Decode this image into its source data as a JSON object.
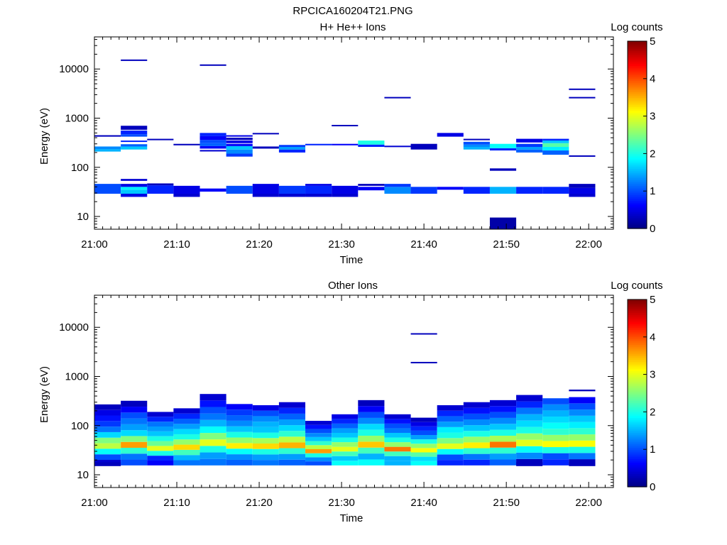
{
  "figure_title": "RPCICA160204T21.PNG",
  "chart_data": [
    {
      "type": "heatmap",
      "title": "H+ He++ Ions",
      "xlabel": "Time",
      "ylabel": "Energy (eV)",
      "xticks": [
        "21:00",
        "21:10",
        "21:20",
        "21:30",
        "21:40",
        "21:50",
        "22:00"
      ],
      "xlim_minutes": [
        0,
        63
      ],
      "yticks": [
        "10",
        "100",
        "1000",
        "10000"
      ],
      "yscale": "log",
      "ylim": [
        5.5,
        45000
      ],
      "colorbar": {
        "label": "Log counts",
        "ticks": [
          "0",
          "1",
          "2",
          "3",
          "4",
          "5"
        ],
        "range": [
          0,
          5
        ]
      },
      "cells": [
        [
          0,
          3.2,
          29,
          46,
          1.0
        ],
        [
          0,
          3.2,
          209,
          235,
          1.5
        ],
        [
          0,
          3.2,
          235,
          265,
          1.3
        ],
        [
          0,
          3.2,
          420,
          450,
          0.3
        ],
        [
          3.2,
          6.4,
          25,
          29,
          0.5
        ],
        [
          3.2,
          6.4,
          29,
          35,
          1.6
        ],
        [
          3.2,
          6.4,
          35,
          40,
          1.8
        ],
        [
          3.2,
          6.4,
          40,
          46,
          0.5
        ],
        [
          3.2,
          6.4,
          53,
          58,
          0.4
        ],
        [
          3.2,
          6.4,
          230,
          265,
          1.6
        ],
        [
          3.2,
          6.4,
          265,
          295,
          1.1
        ],
        [
          3.2,
          6.4,
          330,
          350,
          0.8
        ],
        [
          3.2,
          6.4,
          420,
          470,
          1.0
        ],
        [
          3.2,
          6.4,
          470,
          560,
          0.8
        ],
        [
          3.2,
          6.4,
          580,
          700,
          0.3
        ],
        [
          3.2,
          6.4,
          14800,
          15600,
          0.3
        ],
        [
          6.4,
          9.6,
          29,
          43,
          0.8
        ],
        [
          6.4,
          9.6,
          43,
          47,
          0.3
        ],
        [
          6.4,
          9.6,
          360,
          380,
          0.3
        ],
        [
          9.6,
          12.8,
          25,
          29,
          0.4
        ],
        [
          9.6,
          12.8,
          29,
          42,
          0.5
        ],
        [
          9.6,
          12.8,
          280,
          300,
          0.3
        ],
        [
          12.8,
          16,
          32,
          37,
          0.6
        ],
        [
          12.8,
          16,
          210,
          225,
          0.4
        ],
        [
          12.8,
          16,
          240,
          270,
          0.6
        ],
        [
          12.8,
          16,
          270,
          310,
          1.1
        ],
        [
          12.8,
          16,
          310,
          360,
          1.0
        ],
        [
          12.8,
          16,
          360,
          430,
          0.6
        ],
        [
          12.8,
          16,
          430,
          500,
          0.8
        ],
        [
          12.8,
          16,
          11800,
          12400,
          0.3
        ],
        [
          16,
          19.2,
          29,
          42,
          1.0
        ],
        [
          16,
          19.2,
          165,
          190,
          0.9
        ],
        [
          16,
          19.2,
          190,
          230,
          1.3
        ],
        [
          16,
          19.2,
          230,
          270,
          1.6
        ],
        [
          16,
          19.2,
          270,
          300,
          0.6
        ],
        [
          16,
          19.2,
          310,
          350,
          0.5
        ],
        [
          16,
          19.2,
          360,
          400,
          0.3
        ],
        [
          16,
          19.2,
          420,
          450,
          0.5
        ],
        [
          19.2,
          22.4,
          25,
          29,
          0.4
        ],
        [
          19.2,
          22.4,
          29,
          46,
          0.5
        ],
        [
          19.2,
          22.4,
          240,
          265,
          0.3
        ],
        [
          19.2,
          22.4,
          470,
          500,
          0.3
        ],
        [
          22.4,
          25.6,
          25,
          29,
          0.4
        ],
        [
          22.4,
          25.6,
          29,
          42,
          0.9
        ],
        [
          22.4,
          25.6,
          200,
          230,
          0.8
        ],
        [
          22.4,
          25.6,
          230,
          260,
          1.4
        ],
        [
          22.4,
          25.6,
          260,
          285,
          0.9
        ],
        [
          25.6,
          28.8,
          25,
          29,
          0.4
        ],
        [
          25.6,
          28.8,
          29,
          42,
          0.8
        ],
        [
          25.6,
          28.8,
          42,
          46,
          0.5
        ],
        [
          25.6,
          28.8,
          280,
          300,
          0.8
        ],
        [
          28.8,
          32,
          25,
          29,
          0.4
        ],
        [
          28.8,
          32,
          29,
          42,
          0.5
        ],
        [
          28.8,
          32,
          280,
          300,
          0.6
        ],
        [
          28.8,
          32,
          700,
          730,
          0.3
        ],
        [
          32,
          35.2,
          34,
          40,
          0.6
        ],
        [
          32,
          35.2,
          42,
          46,
          0.3
        ],
        [
          32,
          35.2,
          260,
          290,
          0.8
        ],
        [
          32,
          35.2,
          290,
          350,
          2.0
        ],
        [
          35.2,
          38.4,
          29,
          40,
          1.3
        ],
        [
          35.2,
          38.4,
          40,
          46,
          0.9
        ],
        [
          35.2,
          38.4,
          260,
          275,
          0.4
        ],
        [
          35.2,
          38.4,
          2550,
          2700,
          0.3
        ],
        [
          38.4,
          41.6,
          29,
          40,
          0.9
        ],
        [
          38.4,
          41.6,
          230,
          300,
          0.3
        ],
        [
          41.6,
          44.8,
          35,
          40,
          0.6
        ],
        [
          41.6,
          44.8,
          420,
          500,
          0.5
        ],
        [
          44.8,
          48,
          29,
          40,
          0.8
        ],
        [
          44.8,
          48,
          230,
          260,
          1.5
        ],
        [
          44.8,
          48,
          260,
          290,
          1.3
        ],
        [
          44.8,
          48,
          290,
          330,
          1.0
        ],
        [
          44.8,
          48,
          360,
          380,
          0.3
        ],
        [
          48,
          51.2,
          5.5,
          9.5,
          0.2
        ],
        [
          48,
          51.2,
          29,
          40,
          1.5
        ],
        [
          48,
          51.2,
          85,
          95,
          0.3
        ],
        [
          48,
          51.2,
          220,
          245,
          0.8
        ],
        [
          48,
          51.2,
          245,
          300,
          1.9
        ],
        [
          51.2,
          54.4,
          29,
          40,
          0.8
        ],
        [
          51.2,
          54.4,
          200,
          230,
          1.1
        ],
        [
          51.2,
          54.4,
          230,
          260,
          1.4
        ],
        [
          51.2,
          54.4,
          260,
          300,
          0.9
        ],
        [
          51.2,
          54.4,
          320,
          380,
          0.5
        ],
        [
          54.4,
          57.6,
          29,
          40,
          0.8
        ],
        [
          54.4,
          57.6,
          180,
          220,
          1.1
        ],
        [
          54.4,
          57.6,
          220,
          260,
          1.8
        ],
        [
          54.4,
          57.6,
          260,
          310,
          2.3
        ],
        [
          54.4,
          57.6,
          310,
          350,
          1.6
        ],
        [
          54.4,
          57.6,
          350,
          380,
          0.8
        ],
        [
          57.6,
          60.8,
          25,
          29,
          0.4
        ],
        [
          57.6,
          60.8,
          29,
          38,
          0.5
        ],
        [
          57.6,
          60.8,
          38,
          46,
          0.3
        ],
        [
          57.6,
          60.8,
          165,
          175,
          0.3
        ],
        [
          57.6,
          60.8,
          2550,
          2700,
          0.3
        ],
        [
          57.6,
          60.8,
          3800,
          4000,
          0.3
        ]
      ]
    },
    {
      "type": "heatmap",
      "title": "Other Ions",
      "xlabel": "Time",
      "ylabel": "Energy (eV)",
      "xticks": [
        "21:00",
        "21:10",
        "21:20",
        "21:30",
        "21:40",
        "21:50",
        "22:00"
      ],
      "xlim_minutes": [
        0,
        63
      ],
      "yticks": [
        "10",
        "100",
        "1000",
        "10000"
      ],
      "yscale": "log",
      "ylim": [
        5.5,
        45000
      ],
      "colorbar": {
        "label": "Log counts",
        "ticks": [
          "0",
          "1",
          "2",
          "3",
          "4",
          "5"
        ],
        "range": [
          0,
          5
        ]
      },
      "columns": [
        {
          "x0": 0,
          "x1": 3.2,
          "top": 270,
          "profile": [
            0.4,
            1.0,
            1.9,
            2.8,
            2.5,
            1.7,
            1.2,
            0.9,
            0.7,
            0.5,
            0.3
          ]
        },
        {
          "x0": 3.2,
          "x1": 6.4,
          "top": 320,
          "profile": [
            1.0,
            1.2,
            2.1,
            3.6,
            2.5,
            1.7,
            1.4,
            1.2,
            1.0,
            0.6,
            0.3
          ]
        },
        {
          "x0": 6.4,
          "x1": 9.6,
          "top": 190,
          "profile": [
            0.6,
            0.8,
            2.0,
            3.0,
            2.4,
            2.0,
            1.6,
            1.4,
            1.2,
            0.8,
            0.4
          ]
        },
        {
          "x0": 9.6,
          "x1": 12.8,
          "top": 225,
          "profile": [
            1.2,
            1.5,
            2.2,
            3.3,
            2.6,
            2.0,
            1.7,
            1.4,
            1.1,
            0.8,
            0.4
          ]
        },
        {
          "x0": 12.8,
          "x1": 16,
          "top": 440,
          "profile": [
            1.2,
            1.4,
            2.0,
            3.0,
            2.5,
            1.9,
            1.5,
            1.2,
            1.0,
            0.7,
            0.4
          ]
        },
        {
          "x0": 16,
          "x1": 19.2,
          "top": 275,
          "profile": [
            1.1,
            1.3,
            1.9,
            3.2,
            2.6,
            2.0,
            1.6,
            1.3,
            1.1,
            0.9,
            0.6
          ]
        },
        {
          "x0": 19.2,
          "x1": 22.4,
          "top": 260,
          "profile": [
            1.2,
            1.4,
            2.0,
            3.3,
            2.7,
            2.0,
            1.6,
            1.5,
            1.3,
            1.0,
            0.5
          ]
        },
        {
          "x0": 22.4,
          "x1": 25.6,
          "top": 300,
          "profile": [
            1.1,
            1.4,
            2.1,
            3.5,
            2.8,
            2.1,
            1.7,
            1.4,
            1.1,
            0.8,
            0.4
          ]
        },
        {
          "x0": 25.6,
          "x1": 28.8,
          "top": 125,
          "profile": [
            1.0,
            1.3,
            2.0,
            3.6,
            2.8,
            2.1,
            1.6,
            1.3,
            1.0,
            0.7,
            0.4
          ]
        },
        {
          "x0": 28.8,
          "x1": 32,
          "top": 170,
          "profile": [
            1.9,
            1.6,
            2.2,
            3.0,
            2.6,
            2.0,
            1.6,
            1.4,
            1.1,
            0.8,
            0.5
          ]
        },
        {
          "x0": 32,
          "x1": 35.2,
          "top": 330,
          "profile": [
            1.9,
            1.5,
            2.2,
            3.4,
            2.6,
            2.0,
            1.7,
            1.3,
            1.0,
            0.6,
            0.3
          ]
        },
        {
          "x0": 35.2,
          "x1": 38.4,
          "top": 170,
          "profile": [
            1.5,
            1.5,
            2.2,
            3.8,
            2.6,
            2.0,
            1.6,
            1.2,
            1.0,
            0.7,
            0.4
          ]
        },
        {
          "x0": 38.4,
          "x1": 41.6,
          "top": 145,
          "profile": [
            1.9,
            1.7,
            2.3,
            3.1,
            2.6,
            2.0,
            1.4,
            1.0,
            0.8,
            0.5,
            0.3
          ]
        },
        {
          "x0": 41.6,
          "x1": 44.8,
          "top": 260,
          "profile": [
            0.8,
            1.0,
            1.9,
            3.0,
            2.5,
            2.0,
            1.8,
            1.4,
            1.1,
            0.8,
            0.4
          ]
        },
        {
          "x0": 44.8,
          "x1": 48,
          "top": 300,
          "profile": [
            0.8,
            1.2,
            2.1,
            3.2,
            2.6,
            2.0,
            1.6,
            1.3,
            1.0,
            0.7,
            0.4
          ]
        },
        {
          "x0": 48,
          "x1": 51.2,
          "top": 330,
          "profile": [
            1.1,
            1.4,
            2.1,
            3.8,
            2.7,
            2.0,
            1.6,
            1.3,
            1.0,
            0.7,
            0.4
          ]
        },
        {
          "x0": 51.2,
          "x1": 54.4,
          "top": 420,
          "profile": [
            0.3,
            1.3,
            1.9,
            3.0,
            2.6,
            2.0,
            1.7,
            1.5,
            1.2,
            0.8,
            0.4
          ]
        },
        {
          "x0": 54.4,
          "x1": 57.6,
          "top": 360,
          "profile": [
            0.8,
            1.0,
            2.0,
            3.1,
            2.6,
            2.1,
            1.9,
            1.7,
            1.5,
            1.3,
            1.0
          ]
        },
        {
          "x0": 57.6,
          "x1": 60.8,
          "top": 380,
          "profile": [
            0.3,
            1.2,
            2.0,
            3.1,
            2.6,
            2.1,
            1.8,
            1.6,
            1.3,
            1.0,
            0.6
          ]
        }
      ],
      "extra_cells": [
        [
          38.4,
          41.6,
          1850,
          1980,
          0.3
        ],
        [
          38.4,
          41.6,
          7200,
          7600,
          0.3
        ],
        [
          57.6,
          60.8,
          500,
          540,
          0.3
        ],
        [
          0,
          3.2,
          15,
          18,
          0.3
        ],
        [
          51.2,
          54.4,
          15,
          18,
          0.3
        ],
        [
          57.6,
          60.8,
          15,
          18,
          0.3
        ]
      ]
    }
  ]
}
